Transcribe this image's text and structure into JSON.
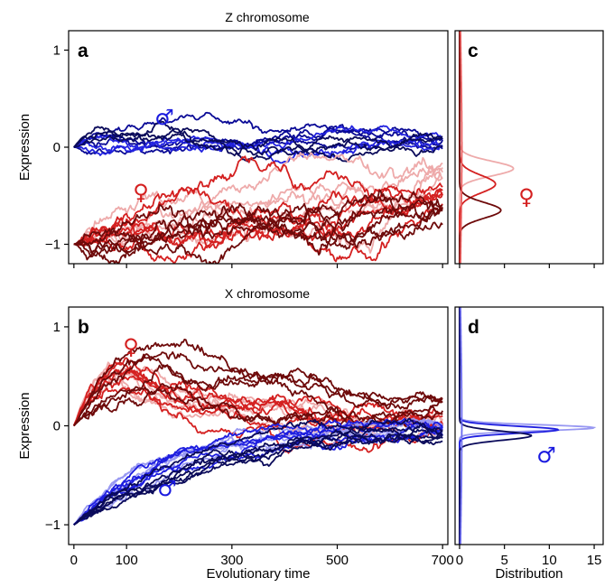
{
  "chart_data": [
    {
      "panel": "a",
      "type": "line",
      "title": "Z chromosome",
      "xlabel": "",
      "ylabel": "Expression",
      "xlim": [
        -10,
        710
      ],
      "ylim": [
        -1.2,
        1.2
      ],
      "x_ticks": [
        0,
        100,
        300,
        500,
        700
      ],
      "y_ticks": [
        1,
        0,
        -1
      ],
      "y_tick_labels": [
        "1",
        "0",
        "−1"
      ],
      "annotations": [
        {
          "text": "♂",
          "color": "#1a1adf"
        },
        {
          "text": "♀",
          "color": "#d41f1f"
        }
      ],
      "series": [
        {
          "group": "male",
          "color": "#0a0a96",
          "count": 4,
          "start": 0.0,
          "end": 0.05,
          "noise": 0.022
        },
        {
          "group": "male",
          "color": "#2222e0",
          "count": 3,
          "start": 0.0,
          "end": 0.05,
          "noise": 0.022
        },
        {
          "group": "male",
          "color": "#0a0a5a",
          "count": 3,
          "start": 0.0,
          "end": 0.05,
          "noise": 0.022
        },
        {
          "group": "female",
          "color": "#eeaaaa",
          "count": 5,
          "start": -1.0,
          "end": -0.22,
          "noise": 0.04
        },
        {
          "group": "female",
          "color": "#d42020",
          "count": 6,
          "start": -1.0,
          "end": -0.48,
          "noise": 0.04
        },
        {
          "group": "female",
          "color": "#6e0a0a",
          "count": 6,
          "start": -1.0,
          "end": -0.7,
          "noise": 0.04
        }
      ]
    },
    {
      "panel": "b",
      "type": "line",
      "title": "X chromosome",
      "xlabel": "Evolutionary time",
      "ylabel": "Expression",
      "xlim": [
        -10,
        710
      ],
      "ylim": [
        -1.2,
        1.2
      ],
      "x_ticks": [
        0,
        100,
        300,
        500,
        700
      ],
      "y_ticks": [
        1,
        0,
        -1
      ],
      "y_tick_labels": [
        "1",
        "0",
        "−1"
      ],
      "annotations": [
        {
          "text": "♀",
          "color": "#d41f1f"
        },
        {
          "text": "♂",
          "color": "#1a1adf"
        }
      ],
      "series": [
        {
          "group": "female",
          "color": "#eeaaaa",
          "count": 5,
          "start": 0.0,
          "peak": 0.53,
          "peak_x": 90,
          "end": 0.02,
          "noise": 0.03
        },
        {
          "group": "female",
          "color": "#d42020",
          "count": 6,
          "start": 0.0,
          "peak": 0.56,
          "peak_x": 110,
          "end": 0.08,
          "noise": 0.03
        },
        {
          "group": "female",
          "color": "#6e0a0a",
          "count": 6,
          "start": 0.0,
          "peak": 0.55,
          "peak_x": 190,
          "end": 0.2,
          "noise": 0.03
        },
        {
          "group": "male",
          "color": "#9898f2",
          "count": 5,
          "start": -1.0,
          "end": -0.02,
          "noise": 0.02
        },
        {
          "group": "male",
          "color": "#1e1edf",
          "count": 5,
          "start": -1.0,
          "end": -0.05,
          "noise": 0.02
        },
        {
          "group": "male",
          "color": "#0a0a5a",
          "count": 6,
          "start": -1.0,
          "end": -0.1,
          "noise": 0.02
        }
      ]
    },
    {
      "panel": "c",
      "type": "line",
      "xlabel": "",
      "xlim": [
        -0.5,
        16
      ],
      "ylim": [
        -1.2,
        1.2
      ],
      "x_ticks": [
        0,
        5,
        10,
        15
      ],
      "annotations": [
        {
          "text": "♀",
          "color": "#d41f1f"
        }
      ],
      "series": [
        {
          "color": "#eeaaaa",
          "mean": -0.22,
          "peak_value": 6.0,
          "sd": 0.075
        },
        {
          "color": "#d42020",
          "mean": -0.38,
          "peak_value": 4.0,
          "sd": 0.09
        },
        {
          "color": "#6e0a0a",
          "mean": -0.65,
          "peak_value": 4.6,
          "sd": 0.08
        },
        {
          "color": "#e85a5a",
          "mean": 0.0,
          "peak_value": 0.25,
          "sd": 0.9
        }
      ]
    },
    {
      "panel": "d",
      "type": "line",
      "xlabel": "Distribution",
      "xlim": [
        -0.5,
        16
      ],
      "ylim": [
        -1.2,
        1.2
      ],
      "x_ticks": [
        0,
        5,
        10,
        15
      ],
      "x_tick_labels": [
        "0",
        "5",
        "10",
        "15"
      ],
      "annotations": [
        {
          "text": "♂",
          "color": "#1a1adf"
        }
      ],
      "series": [
        {
          "color": "#9898f2",
          "mean": -0.02,
          "peak_value": 15.0,
          "sd": 0.03
        },
        {
          "color": "#1e1edf",
          "mean": -0.04,
          "peak_value": 11.0,
          "sd": 0.035
        },
        {
          "color": "#0a0a5a",
          "mean": -0.1,
          "peak_value": 8.0,
          "sd": 0.045
        },
        {
          "color": "#6a6aee",
          "mean": 0.0,
          "peak_value": 0.25,
          "sd": 0.9
        }
      ]
    }
  ]
}
